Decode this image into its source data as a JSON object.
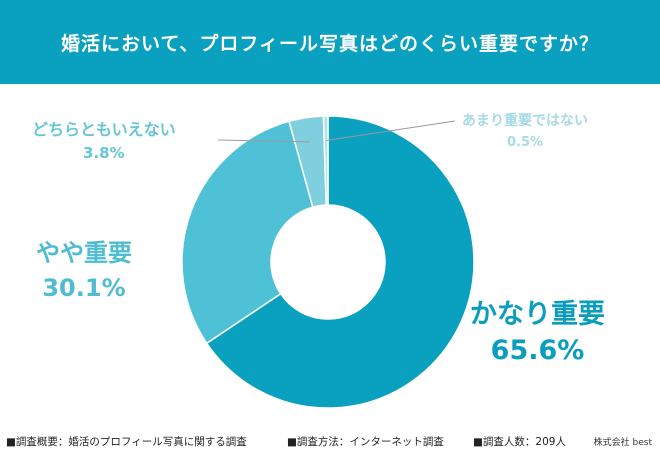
{
  "title": "婚活において、プロフィール写真はどのくらい重要ですか？",
  "chart_data": {
    "type": "pie",
    "donut": true,
    "slices": [
      {
        "label": "かなり重要",
        "value": 65.6,
        "display": "65.6%",
        "color": "#0aa0bf"
      },
      {
        "label": "やや重要",
        "value": 30.1,
        "display": "30.1%",
        "color": "#4fc1d6"
      },
      {
        "label": "どちらともいえない",
        "value": 3.8,
        "display": "3.8%",
        "color": "#7fcfde"
      },
      {
        "label": "あまり重要ではない",
        "value": 0.5,
        "display": "0.5%",
        "color": "#b5e3ec"
      }
    ]
  },
  "footer": {
    "note1": "■調査概要：婚活のプロフィール写真に関する調査",
    "note2": "■調査方法：インターネット調査",
    "note3": "■調査人数：209人",
    "brand": "株式会社 best"
  }
}
